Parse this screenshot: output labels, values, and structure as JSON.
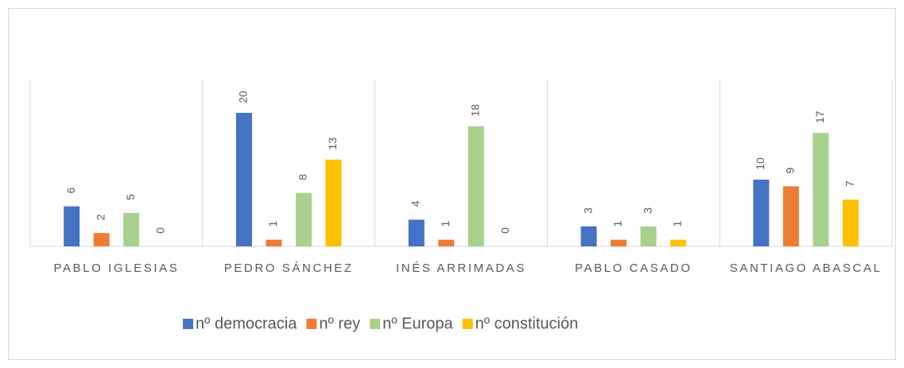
{
  "chart_data": {
    "type": "bar",
    "categories": [
      "PABLO IGLESIAS",
      "PEDRO SÁNCHEZ",
      "INÉS ARRIMADAS",
      "PABLO CASADO",
      "SANTIAGO ABASCAL"
    ],
    "series": [
      {
        "name": "nº democracia",
        "color": "#4472c4",
        "values": [
          6,
          20,
          4,
          3,
          10
        ]
      },
      {
        "name": "nº rey",
        "color": "#ed7d31",
        "values": [
          2,
          1,
          1,
          1,
          9
        ]
      },
      {
        "name": "nº Europa",
        "color": "#a9d18e",
        "values": [
          5,
          8,
          18,
          3,
          17
        ]
      },
      {
        "name": "nº constitución",
        "color": "#ffc000",
        "values": [
          0,
          13,
          0,
          1,
          7
        ]
      }
    ],
    "ylim": [
      0,
      25
    ],
    "legend": "bottom"
  }
}
